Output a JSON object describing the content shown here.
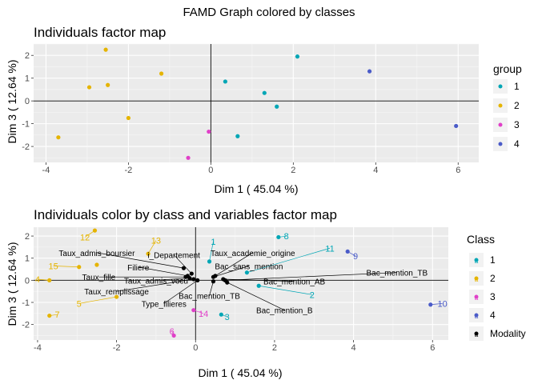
{
  "figure": {
    "title": "FAMD Graph colored by classes"
  },
  "chart_data": [
    {
      "type": "scatter",
      "title": "Individuals factor map",
      "xlabel": "Dim 1  ( 45.04 %)",
      "ylabel": "Dim 3  ( 12.64 %)",
      "xlim": [
        -4.3,
        6.5
      ],
      "ylim": [
        -2.7,
        2.5
      ],
      "xticks": [
        -4,
        -2,
        0,
        2,
        4,
        6
      ],
      "yticks": [
        -2,
        -1,
        0,
        1,
        2
      ],
      "grid": true,
      "legend": {
        "title": "group",
        "position": "right",
        "entries": [
          {
            "label": "1",
            "color": "#00A6B5"
          },
          {
            "label": "2",
            "color": "#E5B400"
          },
          {
            "label": "3",
            "color": "#E040C8"
          },
          {
            "label": "4",
            "color": "#4A5BC8"
          }
        ]
      },
      "series": [
        {
          "group": "1",
          "color": "#00A6B5",
          "points": [
            [
              0.35,
              0.85
            ],
            [
              2.1,
              1.95
            ],
            [
              1.3,
              0.35
            ],
            [
              1.6,
              -0.25
            ],
            [
              0.65,
              -1.55
            ]
          ]
        },
        {
          "group": "2",
          "color": "#E5B400",
          "points": [
            [
              -2.55,
              2.25
            ],
            [
              -2.95,
              0.6
            ],
            [
              -2.5,
              0.7
            ],
            [
              -1.2,
              1.2
            ],
            [
              -2.0,
              -0.75
            ],
            [
              -3.7,
              -1.6
            ]
          ]
        },
        {
          "group": "3",
          "color": "#E040C8",
          "points": [
            [
              -0.05,
              -1.35
            ],
            [
              -0.55,
              -2.5
            ]
          ]
        },
        {
          "group": "4",
          "color": "#4A5BC8",
          "points": [
            [
              3.85,
              1.3
            ],
            [
              5.95,
              -1.1
            ]
          ]
        }
      ]
    },
    {
      "type": "scatter",
      "title": "Individuals color by class and variables factor map",
      "xlabel": "Dim 1  ( 45.04 %)",
      "ylabel": "Dim 3  ( 12.64 %)",
      "xlim": [
        -4.1,
        6.4
      ],
      "ylim": [
        -2.7,
        2.4
      ],
      "xticks": [
        -4,
        -2,
        0,
        2,
        4,
        6
      ],
      "yticks": [
        -2,
        -1,
        0,
        1,
        2
      ],
      "grid": true,
      "legend": {
        "title": "Class",
        "position": "right",
        "entries": [
          {
            "label": "1",
            "color": "#00A6B5"
          },
          {
            "label": "2",
            "color": "#E5B400"
          },
          {
            "label": "3",
            "color": "#E040C8"
          },
          {
            "label": "4",
            "color": "#4A5BC8"
          },
          {
            "label": "Modality",
            "color": "#000000"
          }
        ]
      },
      "individuals": [
        {
          "label": "1",
          "class": "1",
          "x": 0.35,
          "y": 0.85,
          "lx": 0.45,
          "ly": 1.75
        },
        {
          "label": "2",
          "class": "1",
          "x": 1.6,
          "y": -0.25,
          "lx": 2.95,
          "ly": -0.65
        },
        {
          "label": "3",
          "class": "1",
          "x": 0.65,
          "y": -1.55,
          "lx": 0.8,
          "ly": -1.65
        },
        {
          "label": "8",
          "class": "1",
          "x": 2.1,
          "y": 1.95,
          "lx": 2.3,
          "ly": 2.0
        },
        {
          "label": "11",
          "class": "1",
          "x": 1.3,
          "y": 0.35,
          "lx": 3.4,
          "ly": 1.45
        },
        {
          "label": "4",
          "class": "2",
          "x": -3.7,
          "y": -0.0,
          "lx": -4.0,
          "ly": 0.05
        },
        {
          "label": "5",
          "class": "2",
          "x": -2.0,
          "y": -0.75,
          "lx": -2.95,
          "ly": -1.05
        },
        {
          "label": "7",
          "class": "2",
          "x": -3.7,
          "y": -1.6,
          "lx": -3.5,
          "ly": -1.55
        },
        {
          "label": "12",
          "class": "2",
          "x": -2.55,
          "y": 2.25,
          "lx": -2.8,
          "ly": 1.95
        },
        {
          "label": "13",
          "class": "2",
          "x": -1.2,
          "y": 1.2,
          "lx": -1.0,
          "ly": 1.8
        },
        {
          "label": "15",
          "class": "2",
          "x": -2.95,
          "y": 0.6,
          "lx": -3.6,
          "ly": 0.65
        },
        {
          "label": "6",
          "class": "3",
          "x": -0.55,
          "y": -2.5,
          "lx": -0.6,
          "ly": -2.3
        },
        {
          "label": "14",
          "class": "3",
          "x": -0.05,
          "y": -1.35,
          "lx": 0.2,
          "ly": -1.5
        },
        {
          "label": "9",
          "class": "4",
          "x": 3.85,
          "y": 1.3,
          "lx": 4.05,
          "ly": 1.1
        },
        {
          "label": "10",
          "class": "4",
          "x": 5.95,
          "y": -1.1,
          "lx": 6.25,
          "ly": -1.05
        }
      ],
      "extra_points": [
        {
          "class": "2",
          "x": -2.5,
          "y": 0.7
        }
      ],
      "modalities": [
        {
          "label": "Taux_admis_boursier",
          "x": -0.3,
          "y": 0.55,
          "lx": -2.5,
          "ly": 1.25
        },
        {
          "label": "i_Departement",
          "x": -0.1,
          "y": 0.3,
          "lx": -0.55,
          "ly": 1.15
        },
        {
          "label": "Filiere",
          "x": -0.2,
          "y": 0.2,
          "lx": -1.45,
          "ly": 0.6
        },
        {
          "label": "Taux_fille",
          "x": -0.25,
          "y": 0.15,
          "lx": -2.45,
          "ly": 0.15
        },
        {
          "label": "Taux_admis_vocu",
          "x": -0.15,
          "y": 0.1,
          "lx": -1.0,
          "ly": 0.0
        },
        {
          "label": "Taux_remplissage",
          "x": -0.05,
          "y": 0.05,
          "lx": -2.0,
          "ly": -0.5
        },
        {
          "label": "Type_filieres",
          "x": 0.05,
          "y": 0.0,
          "lx": -0.8,
          "ly": -1.05
        },
        {
          "label": "Taux_academie_origine",
          "x": 0.5,
          "y": 0.2,
          "lx": 1.45,
          "ly": 1.25
        },
        {
          "label": "Bac_sans_mention",
          "x": 0.45,
          "y": 0.15,
          "lx": 1.35,
          "ly": 0.65
        },
        {
          "label": "Bac_mention_AB",
          "x": 0.7,
          "y": 0.05,
          "lx": 2.5,
          "ly": -0.05
        },
        {
          "label": "Bac_mention_TB",
          "x": 0.75,
          "y": 0.0,
          "lx": 5.1,
          "ly": 0.35
        },
        {
          "label": "Bac_mention_TB",
          "x": 0.45,
          "y": -0.05,
          "lx": 0.35,
          "ly": -0.7
        },
        {
          "label": "Bac_mention_B",
          "x": 0.8,
          "y": -0.1,
          "lx": 2.25,
          "ly": -1.35
        }
      ]
    }
  ]
}
